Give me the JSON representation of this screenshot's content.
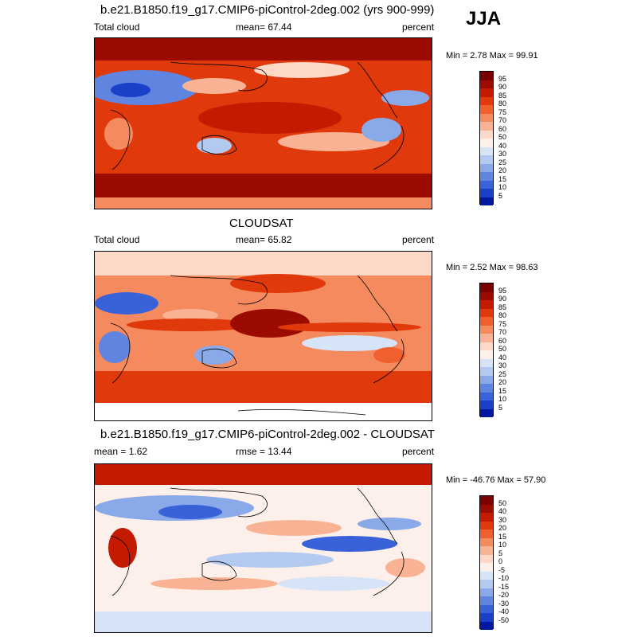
{
  "season": "JJA",
  "panels": [
    {
      "title": "b.e21.B1850.f19_g17.CMIP6-piControl-2deg.002 (yrs 900-999)",
      "left_label": "Total cloud",
      "center_label": "mean=  67.44",
      "right_label": "percent",
      "minmax": "Min =   2.78 Max =  99.91"
    },
    {
      "title": "CLOUDSAT",
      "left_label": "Total cloud",
      "center_label": "mean=  65.82",
      "right_label": "percent",
      "minmax": "Min =   2.52 Max =  98.63"
    },
    {
      "title": "b.e21.B1850.f19_g17.CMIP6-piControl-2deg.002 - CLOUDSAT",
      "left_label": "mean =    1.62",
      "center_label": "rmse =  13.44",
      "right_label": "percent",
      "minmax": "Min = -46.76 Max =  57.90"
    }
  ],
  "colorbars": {
    "abs": {
      "labels": [
        "95",
        "90",
        "85",
        "80",
        "75",
        "70",
        "60",
        "50",
        "40",
        "30",
        "25",
        "20",
        "15",
        "10",
        "5"
      ],
      "colors": [
        "#7a0000",
        "#9c0b00",
        "#c41a00",
        "#e03a0c",
        "#f0602e",
        "#f58a5f",
        "#f9b394",
        "#fcd8c6",
        "#fdf0ea",
        "#d7e4f7",
        "#b3c9f0",
        "#8aa9e8",
        "#5f85e0",
        "#3a62d8",
        "#1a3fc8",
        "#0018a0"
      ]
    },
    "diff": {
      "labels": [
        "50",
        "40",
        "30",
        "20",
        "15",
        "10",
        "5",
        "0",
        "-5",
        "-10",
        "-15",
        "-20",
        "-30",
        "-40",
        "-50"
      ],
      "colors": [
        "#7a0000",
        "#9c0b00",
        "#c41a00",
        "#e03a0c",
        "#f0602e",
        "#f58a5f",
        "#f9b394",
        "#fcd8c6",
        "#fdf0ea",
        "#d7e4f7",
        "#b3c9f0",
        "#8aa9e8",
        "#5f85e0",
        "#3a62d8",
        "#1a3fc8",
        "#0018a0"
      ]
    }
  },
  "chart_data": [
    {
      "type": "heatmap",
      "title": "b.e21.B1850.f19_g17.CMIP6-piControl-2deg.002 (yrs 900-999)",
      "variable": "Total cloud",
      "units": "percent",
      "mean": 67.44,
      "min": 2.78,
      "max": 99.91,
      "contour_levels": [
        5,
        10,
        15,
        20,
        25,
        30,
        40,
        50,
        60,
        70,
        75,
        80,
        85,
        90,
        95
      ]
    },
    {
      "type": "heatmap",
      "title": "CLOUDSAT",
      "variable": "Total cloud",
      "units": "percent",
      "mean": 65.82,
      "min": 2.52,
      "max": 98.63,
      "contour_levels": [
        5,
        10,
        15,
        20,
        25,
        30,
        40,
        50,
        60,
        70,
        75,
        80,
        85,
        90,
        95
      ]
    },
    {
      "type": "heatmap",
      "title": "b.e21.B1850.f19_g17.CMIP6-piControl-2deg.002 - CLOUDSAT",
      "units": "percent",
      "mean": 1.62,
      "rmse": 13.44,
      "min": -46.76,
      "max": 57.9,
      "contour_levels": [
        -50,
        -40,
        -30,
        -20,
        -15,
        -10,
        -5,
        0,
        5,
        10,
        15,
        20,
        30,
        40,
        50
      ]
    }
  ]
}
